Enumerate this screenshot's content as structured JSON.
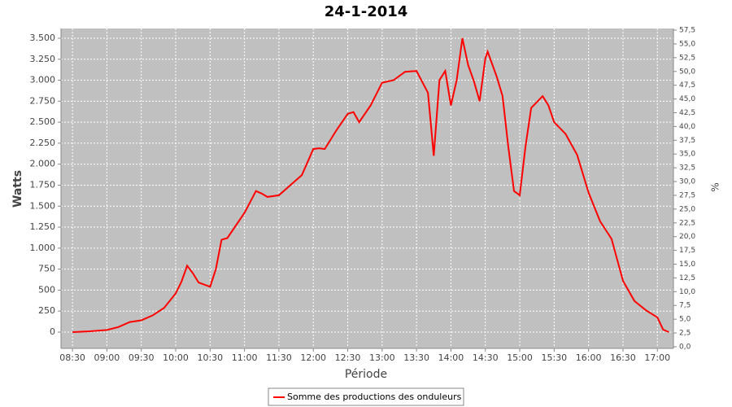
{
  "chart_data": {
    "type": "line",
    "title": "24-1-2014",
    "x_label": "Période",
    "y_label": "Watts",
    "y2_label": "%",
    "x": [
      "08:30",
      "08:45",
      "09:00",
      "09:10",
      "09:20",
      "09:30",
      "09:40",
      "09:50",
      "10:00",
      "10:05",
      "10:10",
      "10:15",
      "10:20",
      "10:30",
      "10:35",
      "10:40",
      "10:45",
      "11:00",
      "11:10",
      "11:15",
      "11:20",
      "11:30",
      "11:40",
      "11:50",
      "12:00",
      "12:05",
      "12:10",
      "12:20",
      "12:30",
      "12:35",
      "12:40",
      "12:50",
      "13:00",
      "13:10",
      "13:20",
      "13:30",
      "13:40",
      "13:45",
      "13:50",
      "13:55",
      "14:00",
      "14:05",
      "14:10",
      "14:15",
      "14:20",
      "14:25",
      "14:30",
      "14:32",
      "14:40",
      "14:45",
      "14:50",
      "14:55",
      "15:00",
      "15:05",
      "15:10",
      "15:20",
      "15:25",
      "15:30",
      "15:40",
      "15:50",
      "16:00",
      "16:10",
      "16:20",
      "16:30",
      "16:40",
      "16:50",
      "17:00",
      "17:05",
      "17:10"
    ],
    "series": [
      {
        "name": "Somme des productions des onduleurs",
        "color": "#ff0000",
        "values": [
          0,
          10,
          25,
          60,
          120,
          140,
          200,
          290,
          460,
          600,
          790,
          700,
          590,
          540,
          750,
          1100,
          1120,
          1420,
          1680,
          1650,
          1610,
          1630,
          1750,
          1870,
          2180,
          2190,
          2180,
          2400,
          2600,
          2620,
          2500,
          2700,
          2970,
          3000,
          3100,
          3110,
          2850,
          2100,
          3000,
          3110,
          2700,
          3000,
          3500,
          3180,
          2990,
          2750,
          3260,
          3340,
          3040,
          2810,
          2210,
          1680,
          1630,
          2210,
          2670,
          2810,
          2700,
          2500,
          2360,
          2110,
          1660,
          1320,
          1110,
          610,
          370,
          260,
          175,
          30,
          0
        ]
      }
    ],
    "xlim": [
      "08:20",
      "17:14"
    ],
    "xticks": [
      "08:30",
      "09:00",
      "09:30",
      "10:00",
      "10:30",
      "11:00",
      "11:30",
      "12:00",
      "12:30",
      "13:00",
      "13:30",
      "14:00",
      "14:30",
      "15:00",
      "15:30",
      "16:00",
      "16:30",
      "17:00"
    ],
    "ylim": [
      -194,
      3616
    ],
    "yticks": [
      0,
      250,
      500,
      750,
      {
        "value": 1000,
        "label": "1.000"
      },
      {
        "value": 1250,
        "label": "1.250"
      },
      {
        "value": 1500,
        "label": "1.500"
      },
      {
        "value": 1750,
        "label": "1.750"
      },
      {
        "value": 2000,
        "label": "2.000"
      },
      {
        "value": 2250,
        "label": "2.250"
      },
      {
        "value": 2500,
        "label": "2.500"
      },
      {
        "value": 2750,
        "label": "2.750"
      },
      {
        "value": 3000,
        "label": "3.000"
      },
      {
        "value": 3250,
        "label": "3.250"
      },
      {
        "value": 3500,
        "label": "3.500"
      }
    ],
    "y2lim": [
      -0.3,
      57.8
    ],
    "y2ticks": [
      {
        "value": 0,
        "label": "0,0"
      },
      {
        "value": 2.5,
        "label": "2,5"
      },
      {
        "value": 5,
        "label": "5,0"
      },
      {
        "value": 7.5,
        "label": "7,5"
      },
      {
        "value": 10,
        "label": "10,0"
      },
      {
        "value": 12.5,
        "label": "12,5"
      },
      {
        "value": 15,
        "label": "15,0"
      },
      {
        "value": 17.5,
        "label": "17,5"
      },
      {
        "value": 20,
        "label": "20,0"
      },
      {
        "value": 22.5,
        "label": "22,5"
      },
      {
        "value": 25,
        "label": "25,0"
      },
      {
        "value": 27.5,
        "label": "27,5"
      },
      {
        "value": 30,
        "label": "30,0"
      },
      {
        "value": 32.5,
        "label": "32,5"
      },
      {
        "value": 35,
        "label": "35,0"
      },
      {
        "value": 37.5,
        "label": "37,5"
      },
      {
        "value": 40,
        "label": "40,0"
      },
      {
        "value": 42.5,
        "label": "42,5"
      },
      {
        "value": 45,
        "label": "45,0"
      },
      {
        "value": 47.5,
        "label": "47,5"
      },
      {
        "value": 50,
        "label": "50,0"
      },
      {
        "value": 52.5,
        "label": "52,5"
      },
      {
        "value": 55,
        "label": "55,0"
      },
      {
        "value": 57.5,
        "label": "57,5"
      }
    ],
    "grid": true,
    "plot_background": "#c0c0c0",
    "legend": "bottom"
  }
}
